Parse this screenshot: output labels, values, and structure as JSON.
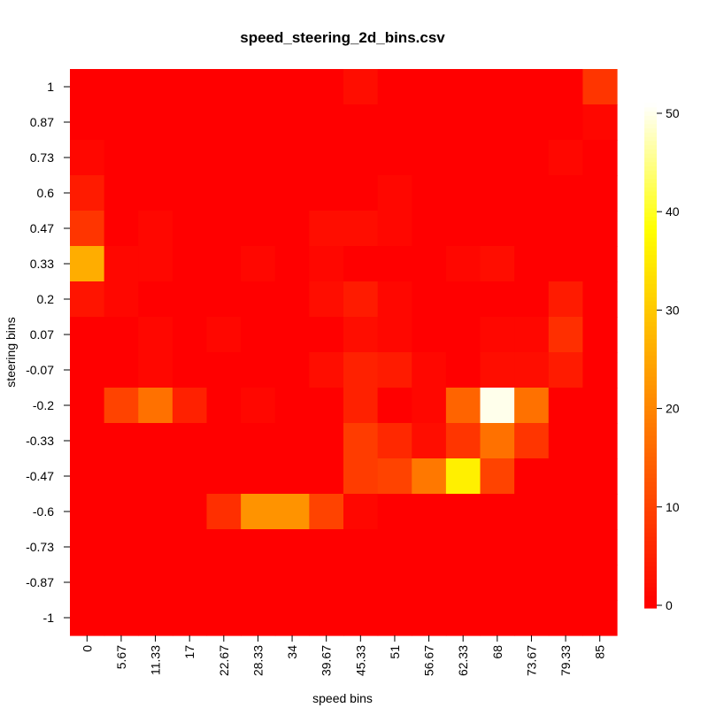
{
  "chart_data": {
    "type": "heatmap",
    "title": "speed_steering_2d_bins.csv",
    "xlabel": "speed bins",
    "ylabel": "steering bins",
    "x_categories": [
      "0",
      "5.67",
      "11.33",
      "17",
      "22.67",
      "28.33",
      "34",
      "39.67",
      "45.33",
      "51",
      "56.67",
      "62.33",
      "68",
      "73.67",
      "79.33",
      "85"
    ],
    "y_categories": [
      "1",
      "0.87",
      "0.73",
      "0.6",
      "0.47",
      "0.33",
      "0.2",
      "0.07",
      "-0.07",
      "-0.2",
      "-0.33",
      "-0.47",
      "-0.6",
      "-0.73",
      "-0.87",
      "-1"
    ],
    "values": [
      [
        0,
        0,
        0,
        0,
        0,
        0,
        0,
        0,
        2,
        0,
        0,
        0,
        0,
        0,
        0,
        8
      ],
      [
        0,
        0,
        0,
        0,
        0,
        0,
        0,
        0,
        0,
        0,
        0,
        0,
        0,
        0,
        0,
        1
      ],
      [
        1,
        0,
        0,
        0,
        0,
        0,
        0,
        0,
        0,
        0,
        0,
        0,
        0,
        0,
        1,
        0
      ],
      [
        4,
        0,
        0,
        0,
        0,
        0,
        0,
        0,
        0,
        1,
        0,
        0,
        0,
        0,
        0,
        0
      ],
      [
        8,
        0,
        1,
        0,
        0,
        0,
        0,
        2,
        2,
        1,
        0,
        0,
        0,
        0,
        0,
        0
      ],
      [
        26,
        1,
        1,
        0,
        0,
        1,
        0,
        1,
        0,
        0,
        0,
        1,
        2,
        0,
        0,
        0
      ],
      [
        3,
        1,
        0,
        0,
        0,
        0,
        0,
        2,
        4,
        1,
        0,
        0,
        0,
        0,
        4,
        0
      ],
      [
        0,
        0,
        1,
        0,
        1,
        0,
        0,
        0,
        2,
        1,
        0,
        0,
        1,
        1,
        7,
        0
      ],
      [
        0,
        0,
        1,
        0,
        0,
        0,
        0,
        2,
        5,
        4,
        1,
        0,
        2,
        2,
        4,
        0
      ],
      [
        0,
        10,
        17,
        5,
        0,
        1,
        0,
        0,
        5,
        0,
        1,
        15,
        50,
        17,
        0,
        0
      ],
      [
        0,
        0,
        0,
        0,
        0,
        0,
        0,
        0,
        9,
        6,
        2,
        8,
        17,
        8,
        0,
        0
      ],
      [
        0,
        0,
        0,
        0,
        0,
        0,
        0,
        0,
        9,
        10,
        18,
        36,
        10,
        0,
        0,
        0
      ],
      [
        0,
        0,
        0,
        0,
        7,
        22,
        22,
        10,
        1,
        0,
        0,
        0,
        0,
        0,
        0,
        0
      ],
      [
        0,
        0,
        0,
        0,
        0,
        0,
        0,
        0,
        0,
        0,
        0,
        0,
        0,
        0,
        0,
        0
      ],
      [
        0,
        0,
        0,
        0,
        0,
        0,
        0,
        0,
        0,
        0,
        0,
        0,
        0,
        0,
        0,
        0
      ],
      [
        0,
        0,
        0,
        0,
        0,
        0,
        0,
        0,
        0,
        0,
        0,
        0,
        0,
        0,
        0,
        0
      ]
    ],
    "colorscale": {
      "name": "heat",
      "range": [
        0,
        51
      ],
      "ticks": [
        "0",
        "10",
        "20",
        "30",
        "40",
        "50"
      ]
    }
  }
}
